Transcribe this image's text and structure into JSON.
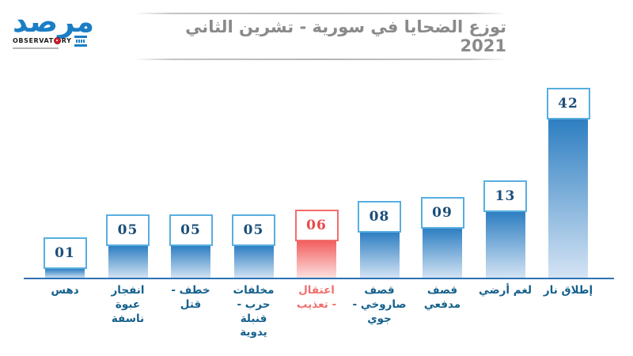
{
  "logo": {
    "arabic": "مرصد",
    "latin_left": "OBSERVAT",
    "latin_right": "RY"
  },
  "header": {
    "title": "توزع الضحايا في سورية - تشرين الثاني 2021"
  },
  "chart_data": {
    "type": "bar",
    "title": "توزع الضحايا في سورية - تشرين الثاني 2021",
    "orientation": "vertical",
    "gridlines": false,
    "legend": false,
    "categories": [
      "دهس",
      "انفجار عبوة ناسفة",
      "خطف - قتل",
      "مخلفات حرب - قنبلة يدوية",
      "اعتقال - تعذيب",
      "قصف صاروخي - جوي",
      "قصف مدفعي",
      "لغم أرضي",
      "إطلاق نار"
    ],
    "values": [
      1,
      5,
      5,
      5,
      6,
      8,
      9,
      13,
      42
    ],
    "highlighted_category": "اعتقال - تعذيب",
    "bars": [
      {
        "value": 1,
        "value_label": "01",
        "label": "دهس",
        "highlight": false
      },
      {
        "value": 5,
        "value_label": "05",
        "label": "انفجار\nعبوة\nناسفة",
        "highlight": false
      },
      {
        "value": 5,
        "value_label": "05",
        "label": "خطف -\nقتل",
        "highlight": false
      },
      {
        "value": 5,
        "value_label": "05",
        "label": "مخلفات\nحرب -\nقنبلة\nيدوية",
        "highlight": false
      },
      {
        "value": 6,
        "value_label": "06",
        "label": "اعتقال\n- تعذيب",
        "highlight": true
      },
      {
        "value": 8,
        "value_label": "08",
        "label": "قصف\nصاروخي -\nجوي",
        "highlight": false
      },
      {
        "value": 9,
        "value_label": "09",
        "label": "قصف\nمدفعي",
        "highlight": false
      },
      {
        "value": 13,
        "value_label": "13",
        "label": "لغم أرضي",
        "highlight": false
      },
      {
        "value": 42,
        "value_label": "42",
        "label": "إطلاق نار",
        "highlight": false
      }
    ]
  },
  "colors": {
    "bar_blue_top": "#2e7fc2",
    "bar_blue_bottom": "#d5e4f4",
    "bar_red_top": "#f2605f",
    "bar_red_bottom": "#fde2e2",
    "box_border_blue": "#58aee1",
    "box_border_red": "#f26d6d",
    "value_text_blue": "#1b4e79",
    "value_text_red": "#e84848",
    "label_blue": "#15608d",
    "label_red": "#f17070",
    "axis_line": "#2c73b5",
    "title_text": "#8a8a8a",
    "logo_blue": "#1a7ec5"
  }
}
